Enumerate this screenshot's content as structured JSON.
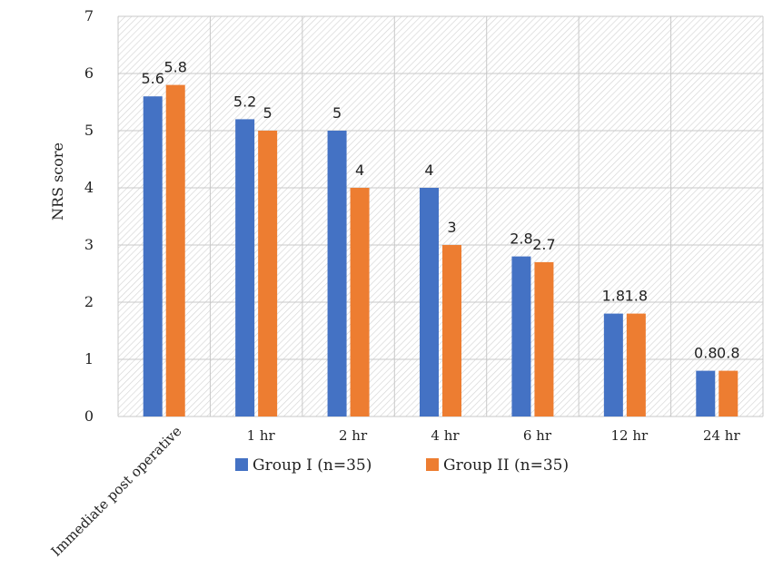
{
  "chart_data": {
    "type": "bar",
    "title": "",
    "xlabel": "",
    "ylabel": "NRS score",
    "ylim": [
      0,
      7
    ],
    "yticks": [
      0,
      1,
      2,
      3,
      4,
      5,
      6,
      7
    ],
    "grid": true,
    "legend_position": "bottom",
    "categories": [
      "Immediate post operative",
      "1 hr",
      "2 hr",
      "4 hr",
      "6 hr",
      "12 hr",
      "24 hr"
    ],
    "series": [
      {
        "name": "Group I (n=35)",
        "color": "#4472C4",
        "values": [
          5.6,
          5.2,
          5,
          4,
          2.8,
          1.8,
          0.8
        ]
      },
      {
        "name": "Group II (n=35)",
        "color": "#ED7D31",
        "values": [
          5.8,
          5,
          4,
          3,
          2.7,
          1.8,
          0.8
        ]
      }
    ]
  }
}
